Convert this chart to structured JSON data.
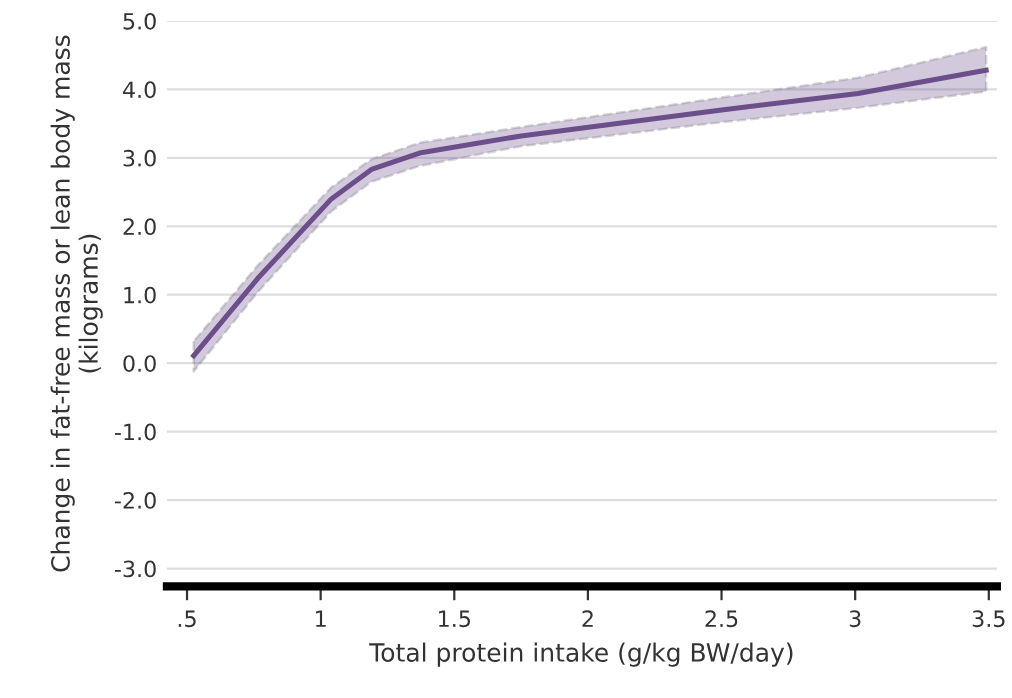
{
  "chart_data": {
    "type": "line",
    "xlabel": "Total protein intake (g/kg BW/day)",
    "ylabel": "Change in fat-free mass or lean body mass (kilograms)",
    "xlim": [
      0.425,
      3.53
    ],
    "ylim": [
      -3.26,
      5
    ],
    "xticks": [
      {
        "value": 0.5,
        "label": ".5"
      },
      1,
      1.5,
      2,
      2.5,
      3,
      3.5
    ],
    "yticks": [
      {
        "value": -3,
        "label": "-3.0"
      },
      {
        "value": -2,
        "label": "-2.0"
      },
      {
        "value": -1,
        "label": "-1.0"
      },
      {
        "value": 0,
        "label": "0.0"
      },
      {
        "value": 1,
        "label": "1.0"
      },
      {
        "value": 2,
        "label": "2.0"
      },
      {
        "value": 3,
        "label": "3.0"
      },
      {
        "value": 4,
        "label": "4.0"
      },
      {
        "value": 5,
        "label": "5.0"
      }
    ],
    "grid": "y",
    "line_style": "solid",
    "series": [
      {
        "color": "#6b4e8a",
        "x": [
          0.525,
          0.765,
          1.04,
          1.19,
          1.37,
          1.75,
          2.5,
          3.01,
          3.49
        ],
        "values": [
          0.11,
          1.24,
          2.4,
          2.83,
          3.07,
          3.32,
          3.7,
          3.94,
          4.28
        ],
        "lower": [
          -0.12,
          1.04,
          2.22,
          2.65,
          2.88,
          3.17,
          3.52,
          3.73,
          3.97
        ],
        "upper": [
          0.32,
          1.43,
          2.57,
          2.98,
          3.22,
          3.45,
          3.88,
          4.17,
          4.62
        ]
      }
    ]
  }
}
